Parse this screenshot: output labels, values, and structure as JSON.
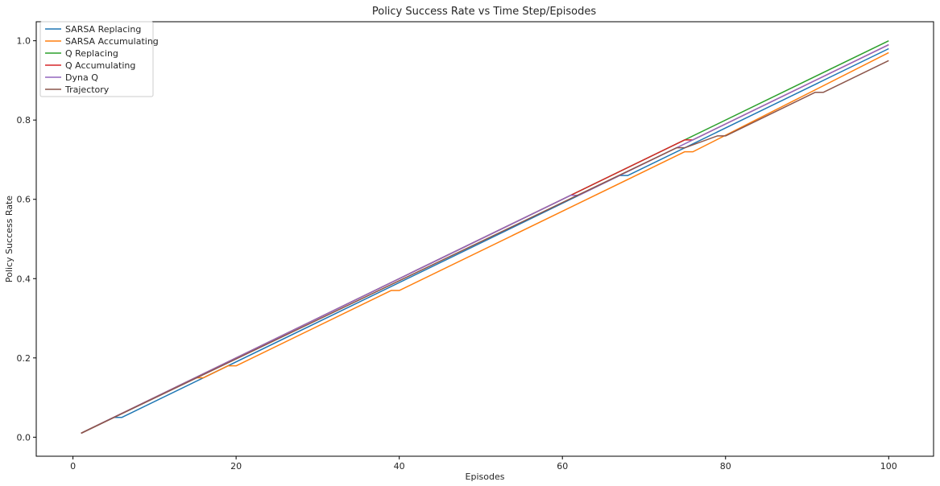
{
  "chart_data": {
    "type": "line",
    "title": "Policy Success Rate vs Time Step/Episodes",
    "xlabel": "Episodes",
    "ylabel": "Policy Success Rate",
    "xlim": [
      -4.5,
      105.5
    ],
    "ylim": [
      -0.048,
      1.048
    ],
    "xticks": [
      0,
      20,
      40,
      60,
      80,
      100
    ],
    "yticks": [
      0.0,
      0.2,
      0.4,
      0.6,
      0.8,
      1.0
    ],
    "xtick_labels": [
      "0",
      "20",
      "40",
      "60",
      "80",
      "100"
    ],
    "ytick_labels": [
      "0.0",
      "0.2",
      "0.4",
      "0.6",
      "0.8",
      "1.0"
    ],
    "grid": false,
    "legend_position": "top-left",
    "series": [
      {
        "name": "SARSA Replacing",
        "color": "#1f77b4",
        "x": [
          1,
          5,
          6,
          7,
          61,
          62,
          67,
          68,
          100
        ],
        "y": [
          0.01,
          0.05,
          0.05,
          0.06,
          0.6,
          0.61,
          0.66,
          0.66,
          0.98
        ]
      },
      {
        "name": "SARSA Accumulating",
        "color": "#ff7f0e",
        "x": [
          1,
          15,
          16,
          19,
          20,
          39,
          40,
          75,
          76,
          100
        ],
        "y": [
          0.01,
          0.15,
          0.15,
          0.18,
          0.18,
          0.37,
          0.37,
          0.72,
          0.72,
          0.97
        ]
      },
      {
        "name": "Q Replacing",
        "color": "#2ca02c",
        "x": [
          1,
          100
        ],
        "y": [
          0.01,
          1.0
        ]
      },
      {
        "name": "Q Accumulating",
        "color": "#d62728",
        "x": [
          1,
          75,
          76,
          100
        ],
        "y": [
          0.01,
          0.75,
          0.75,
          0.99
        ]
      },
      {
        "name": "Dyna Q",
        "color": "#9467bd",
        "x": [
          1,
          61,
          62,
          100
        ],
        "y": [
          0.01,
          0.61,
          0.61,
          0.99
        ]
      },
      {
        "name": "Trajectory",
        "color": "#8c564b",
        "x": [
          1,
          74,
          75,
          79,
          80,
          91,
          92,
          100
        ],
        "y": [
          0.01,
          0.73,
          0.73,
          0.76,
          0.76,
          0.87,
          0.87,
          0.95
        ]
      }
    ]
  }
}
